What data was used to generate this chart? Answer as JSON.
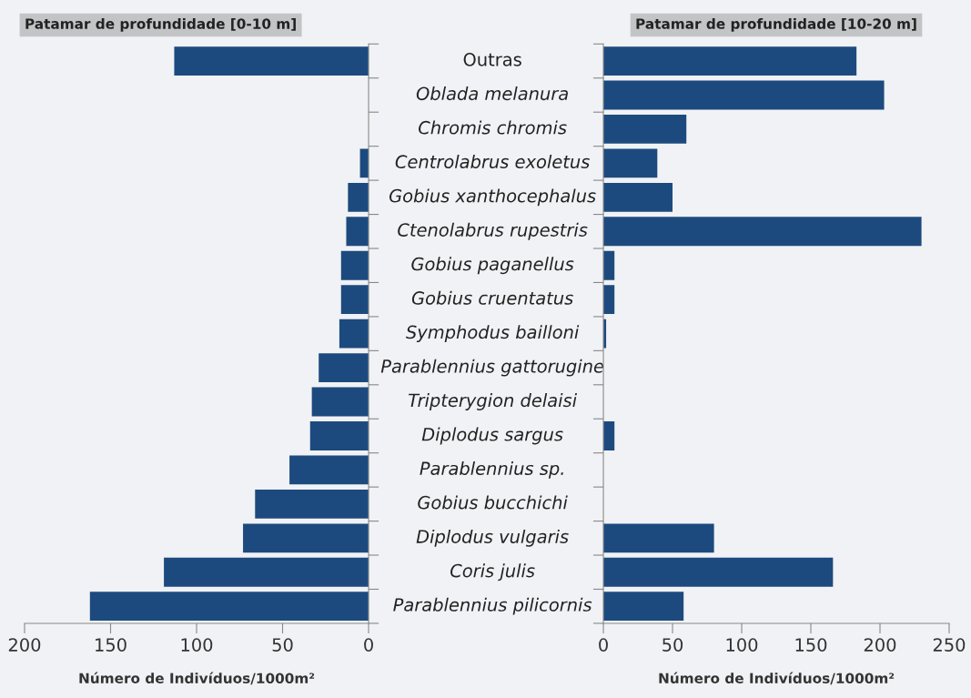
{
  "chart_data": [
    {
      "type": "bar",
      "orientation": "horizontal",
      "title": "Patamar de profundidade [0-10 m]",
      "xlabel": "Número de Indivíduos/1000m²",
      "categories": [
        "Outras",
        "Oblada melanura",
        "Chromis chromis",
        "Centrolabrus exoletus",
        "Gobius xanthocephalus",
        "Ctenolabrus rupestris",
        "Gobius paganellus",
        "Gobius cruentatus",
        "Symphodus bailloni",
        "Parablennius gattorugine",
        "Tripterygion delaisi",
        "Diplodus sargus",
        "Parablennius sp.",
        "Gobius bucchichi",
        "Diplodus vulgaris",
        "Coris julis",
        "Parablennius pilicornis"
      ],
      "series": [
        {
          "color": "#1d4a7e",
          "values": [
            113,
            0,
            null,
            5,
            12,
            13,
            16,
            16,
            17,
            29,
            33,
            34,
            46,
            66,
            73,
            119,
            162
          ]
        }
      ],
      "xlim": [
        200,
        0
      ],
      "xticks": [
        200,
        150,
        100,
        50,
        0
      ],
      "grid": false,
      "legend": false
    },
    {
      "type": "bar",
      "orientation": "horizontal",
      "title": "Patamar de profundidade [10-20 m]",
      "xlabel": "Número de Indivíduos/1000m²",
      "categories": [
        "Outras",
        "Oblada melanura",
        "Chromis chromis",
        "Centrolabrus exoletus",
        "Gobius xanthocephalus",
        "Ctenolabrus rupestris",
        "Gobius paganellus",
        "Gobius cruentatus",
        "Symphodus bailloni",
        "Parablennius gattorugine",
        "Tripterygion delaisi",
        "Diplodus sargus",
        "Parablennius sp.",
        "Gobius bucchichi",
        "Diplodus vulgaris",
        "Coris julis",
        "Parablennius pilicornis"
      ],
      "series": [
        {
          "color": "#1d4a7e",
          "values": [
            183,
            203,
            60,
            39,
            50,
            230,
            8,
            8,
            2,
            0,
            0,
            8,
            0,
            0,
            80,
            166,
            58
          ]
        }
      ],
      "xlim": [
        0,
        250
      ],
      "xticks": [
        0,
        50,
        100,
        150,
        200,
        250
      ],
      "tick_labels": "x",
      "grid": false,
      "legend": false
    }
  ]
}
